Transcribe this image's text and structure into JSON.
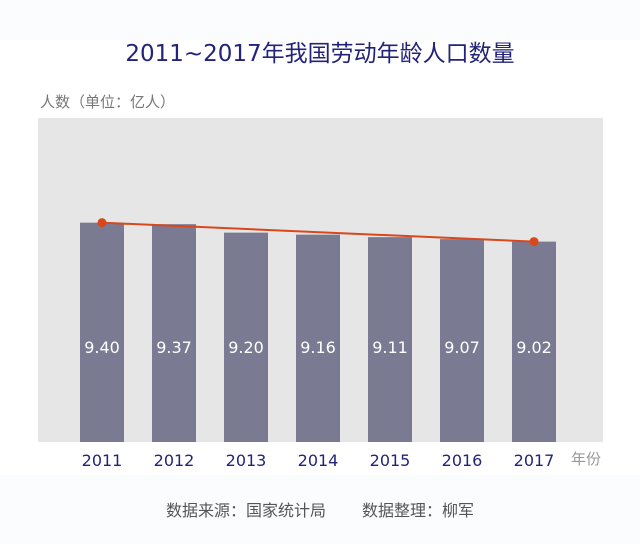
{
  "chart_data": {
    "type": "bar",
    "title": "2011~2017年我国劳动年龄人口数量",
    "ylabel": "人数（单位：亿人）",
    "xlabel": "年份",
    "categories": [
      "2011",
      "2012",
      "2013",
      "2014",
      "2015",
      "2016",
      "2017"
    ],
    "values": [
      9.4,
      9.37,
      9.2,
      9.16,
      9.11,
      9.07,
      9.02
    ],
    "value_labels": [
      "9.40",
      "9.37",
      "9.20",
      "9.16",
      "9.11",
      "9.07",
      "9.02"
    ],
    "ylim": [
      5,
      11.5
    ],
    "grid": false,
    "trend_line": {
      "from": "2011",
      "to": "2017",
      "values": [
        9.4,
        9.02
      ]
    },
    "colors": {
      "bar": "#7a7a93",
      "trend": "#d9471c",
      "plot_bg": "#e6e6e6",
      "title": "#23237a",
      "tick": "#23237a"
    }
  },
  "footer": {
    "source": "数据来源：国家统计局",
    "editor": "数据整理：柳军"
  }
}
